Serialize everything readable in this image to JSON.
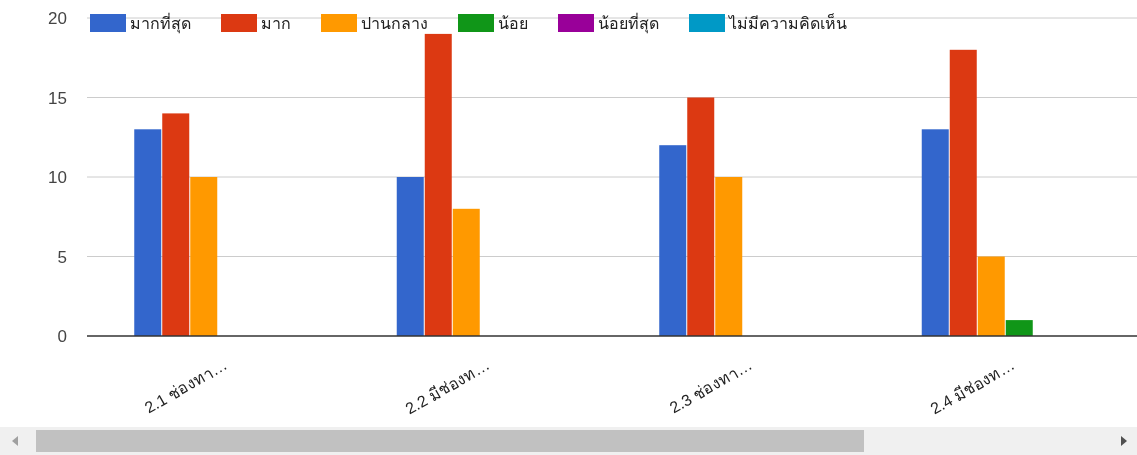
{
  "chart_data": {
    "type": "bar",
    "categories": [
      "2.1 ช่องทา…",
      "2.2 มีช่องท…",
      "2.3 ช่องทา…",
      "2.4 มีช่องท…"
    ],
    "series": [
      {
        "name": "มากที่สุด",
        "color": "#3366cc",
        "values": [
          13,
          10,
          12,
          13
        ]
      },
      {
        "name": "มาก",
        "color": "#dc3912",
        "values": [
          14,
          19,
          15,
          18
        ]
      },
      {
        "name": "ปานกลาง",
        "color": "#ff9900",
        "values": [
          10,
          8,
          10,
          5
        ]
      },
      {
        "name": "น้อย",
        "color": "#109618",
        "values": [
          0,
          0,
          0,
          1
        ]
      },
      {
        "name": "น้อยที่สุด",
        "color": "#990099",
        "values": [
          0,
          0,
          0,
          0
        ]
      },
      {
        "name": "ไม่มีความคิดเห็น",
        "color": "#0099c6",
        "values": [
          0,
          0,
          0,
          0
        ]
      }
    ],
    "ylim": [
      0,
      20
    ],
    "yticks": [
      0,
      5,
      10,
      15,
      20
    ],
    "grid": "y",
    "legend": "top left"
  }
}
